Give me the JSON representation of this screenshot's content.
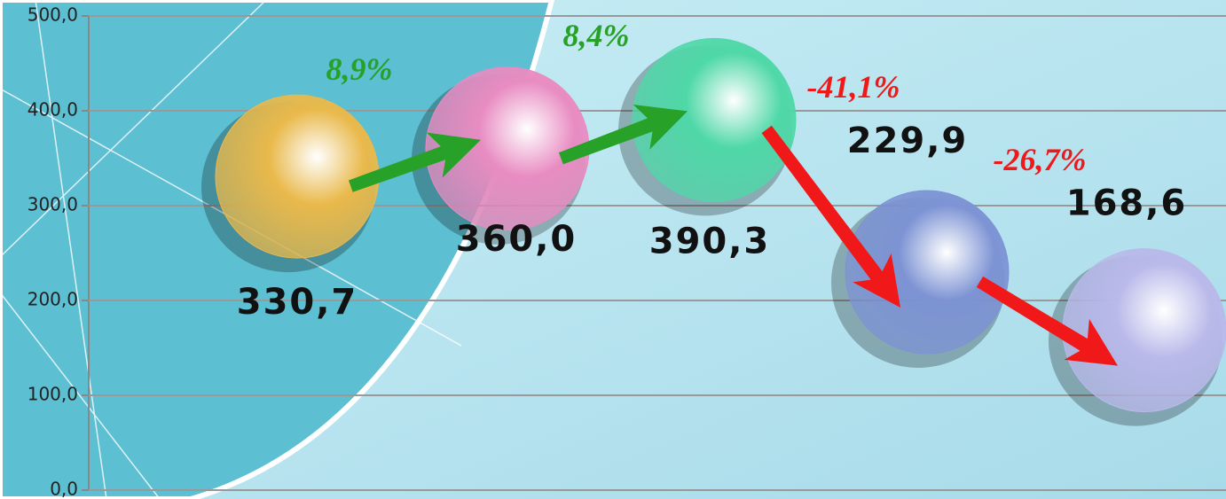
{
  "chart_data": {
    "type": "bubble",
    "values": [
      330.7,
      360.0,
      390.3,
      229.9,
      168.6
    ],
    "value_labels": [
      "330,7",
      "360,0",
      "390,3",
      "229,9",
      "168,6"
    ],
    "colors": [
      "#e9b94b",
      "#e88cc2",
      "#4fd8a8",
      "#7d93d4",
      "#b9b9ea"
    ],
    "changes": [
      {
        "value": 8.9,
        "label": "8,9%"
      },
      {
        "value": 8.4,
        "label": "8,4%"
      },
      {
        "value": -41.1,
        "label": "-41,1%"
      },
      {
        "value": -26.7,
        "label": "-26,7%"
      }
    ],
    "ylim": [
      0,
      500
    ],
    "yticks": [
      {
        "value": 0,
        "label": "0,0"
      },
      {
        "value": 100,
        "label": "100,0"
      },
      {
        "value": 200,
        "label": "200,0"
      },
      {
        "value": 300,
        "label": "300,0"
      },
      {
        "value": 400,
        "label": "400,0"
      },
      {
        "value": 500,
        "label": "500,0"
      }
    ],
    "grid": true
  }
}
